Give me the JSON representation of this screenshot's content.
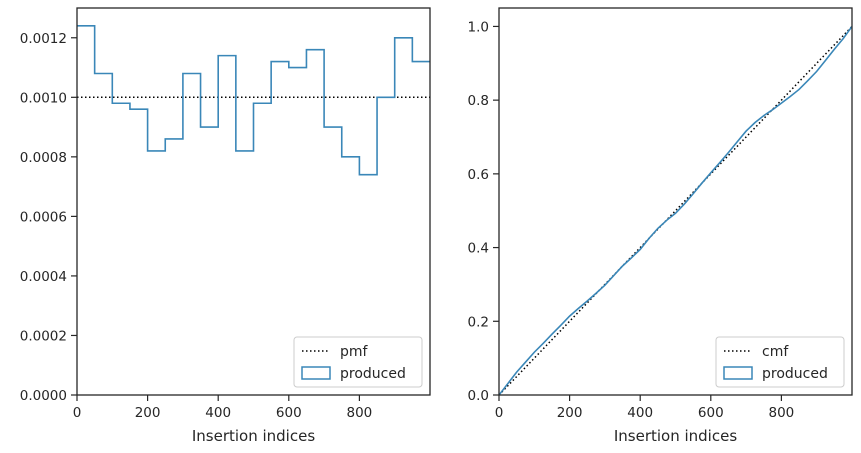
{
  "chart_data": [
    {
      "type": "line",
      "xlabel": "Insertion indices",
      "ylabel": "",
      "xlim": [
        0,
        1000
      ],
      "ylim": [
        0,
        0.0013
      ],
      "x_ticks": [
        0,
        200,
        400,
        600,
        800
      ],
      "x_tick_labels": [
        "0",
        "200",
        "400",
        "600",
        "800"
      ],
      "y_ticks": [
        0,
        0.0002,
        0.0004,
        0.0006,
        0.0008,
        0.001,
        0.0012
      ],
      "y_tick_labels": [
        "0.0000",
        "0.0002",
        "0.0004",
        "0.0006",
        "0.0008",
        "0.0010",
        "0.0012"
      ],
      "grid": false,
      "legend_position": "bottom-right",
      "series": [
        {
          "name": "pmf",
          "style": "dotted",
          "color": "#000000",
          "x": [
            0,
            1000
          ],
          "y": [
            0.001,
            0.001
          ]
        },
        {
          "name": "produced",
          "style": "step",
          "color": "#3a87b8",
          "bin_edges": [
            0,
            50,
            100,
            150,
            200,
            250,
            300,
            350,
            400,
            450,
            500,
            550,
            600,
            650,
            700,
            750,
            800,
            850,
            900,
            950,
            1000
          ],
          "values": [
            0.00124,
            0.00108,
            0.00098,
            0.00096,
            0.00082,
            0.00086,
            0.00108,
            0.0009,
            0.00114,
            0.00082,
            0.00098,
            0.00112,
            0.0011,
            0.00116,
            0.0009,
            0.0008,
            0.00074,
            0.001,
            0.0012,
            0.00112
          ]
        }
      ]
    },
    {
      "type": "line",
      "xlabel": "Insertion indices",
      "ylabel": "",
      "xlim": [
        0,
        1000
      ],
      "ylim": [
        0,
        1.05
      ],
      "x_ticks": [
        0,
        200,
        400,
        600,
        800
      ],
      "x_tick_labels": [
        "0",
        "200",
        "400",
        "600",
        "800"
      ],
      "y_ticks": [
        0,
        0.2,
        0.4,
        0.6,
        0.8,
        1.0
      ],
      "y_tick_labels": [
        "0.0",
        "0.2",
        "0.4",
        "0.6",
        "0.8",
        "1.0"
      ],
      "grid": false,
      "legend_position": "bottom-right",
      "series": [
        {
          "name": "cmf",
          "style": "dotted",
          "color": "#000000",
          "x": [
            0,
            1000
          ],
          "y": [
            0,
            1.0
          ]
        },
        {
          "name": "produced",
          "style": "solid",
          "color": "#3a87b8",
          "x": [
            0,
            25,
            50,
            75,
            100,
            125,
            150,
            175,
            200,
            225,
            250,
            275,
            300,
            325,
            350,
            375,
            400,
            425,
            450,
            475,
            500,
            525,
            550,
            575,
            600,
            625,
            650,
            675,
            700,
            725,
            750,
            775,
            800,
            825,
            850,
            875,
            900,
            925,
            950,
            975,
            1000
          ],
          "y": [
            0,
            0.031,
            0.062,
            0.089,
            0.116,
            0.14,
            0.165,
            0.189,
            0.214,
            0.235,
            0.255,
            0.276,
            0.298,
            0.324,
            0.35,
            0.372,
            0.395,
            0.425,
            0.452,
            0.474,
            0.493,
            0.518,
            0.546,
            0.575,
            0.603,
            0.63,
            0.658,
            0.687,
            0.716,
            0.739,
            0.758,
            0.774,
            0.792,
            0.81,
            0.829,
            0.853,
            0.878,
            0.908,
            0.938,
            0.967,
            1.0
          ]
        }
      ]
    }
  ]
}
